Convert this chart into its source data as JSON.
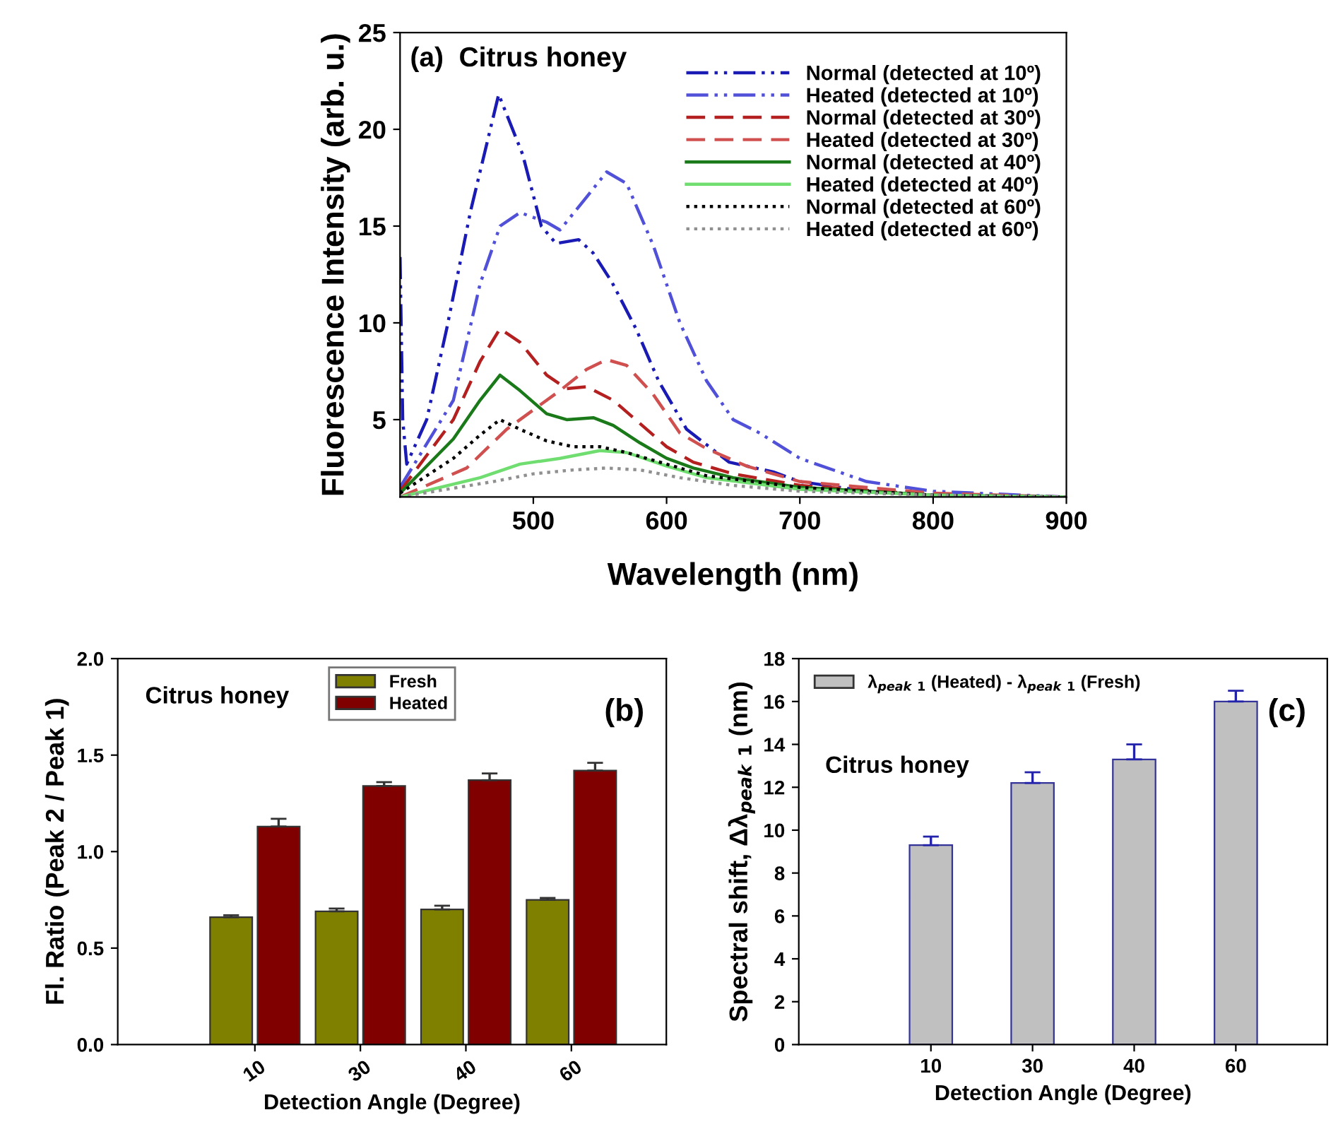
{
  "chart_data": [
    {
      "type": "line",
      "xlabel": "Wavelength (nm)",
      "ylabel": "Fluorescence Intensity (arb. u.)",
      "annotations": [
        "(a)  Citrus honey"
      ],
      "xlim": [
        400,
        900
      ],
      "ylim": [
        1,
        25
      ],
      "xticks": [
        500,
        600,
        700,
        800,
        900
      ],
      "yticks": [
        5,
        10,
        15,
        20,
        25
      ],
      "grid": false,
      "legend": "top right",
      "marker": "none",
      "series": [
        {
          "name": "Normal (detected at 10º)",
          "color": "#1a1ab4",
          "line_style": "dashdot",
          "x": [
            400,
            402,
            405,
            420,
            435,
            453,
            474,
            492,
            506,
            517,
            534,
            545,
            559,
            577,
            594,
            615,
            647,
            680,
            700,
            750,
            800,
            900
          ],
          "values": [
            13.4,
            5,
            2.7,
            5,
            9.7,
            15.8,
            21.8,
            18.7,
            15,
            14.1,
            14.3,
            13.6,
            12.1,
            9.7,
            7,
            4.5,
            2.8,
            2.3,
            1.8,
            1.3,
            1.1,
            1.0
          ]
        },
        {
          "name": "Heated (detected at 10º)",
          "color": "#5050d8",
          "line_style": "dashdot",
          "x": [
            400,
            440,
            460,
            475,
            490,
            510,
            520,
            540,
            555,
            570,
            590,
            610,
            630,
            650,
            670,
            700,
            750,
            800,
            900
          ],
          "values": [
            1.5,
            6,
            12,
            15,
            15.7,
            15.2,
            14.8,
            16.5,
            17.8,
            17.2,
            14,
            10,
            7,
            5,
            4.3,
            3,
            1.8,
            1.3,
            1.0
          ]
        },
        {
          "name": "Normal (detected at 30º)",
          "color": "#b42020",
          "line_style": "dashed",
          "x": [
            400,
            440,
            460,
            475,
            490,
            510,
            525,
            540,
            560,
            580,
            600,
            620,
            650,
            700,
            800,
            900
          ],
          "values": [
            1.3,
            5,
            8,
            9.7,
            9,
            7.3,
            6.6,
            6.7,
            6.0,
            4.8,
            3.6,
            2.8,
            2.2,
            1.6,
            1.1,
            1.0
          ]
        },
        {
          "name": "Heated (detected at 30º)",
          "color": "#d05050",
          "line_style": "dashed",
          "x": [
            400,
            450,
            480,
            500,
            520,
            540,
            555,
            570,
            590,
            610,
            630,
            660,
            700,
            800,
            900
          ],
          "values": [
            1.0,
            2.5,
            4.5,
            5.5,
            6.5,
            7.6,
            8.1,
            7.8,
            6.3,
            4.3,
            3.5,
            2.6,
            1.8,
            1.2,
            1.0
          ]
        },
        {
          "name": "Normal (detected at 40º)",
          "color": "#1a7a1a",
          "line_style": "solid",
          "x": [
            400,
            440,
            460,
            475,
            490,
            510,
            525,
            545,
            560,
            580,
            600,
            620,
            650,
            700,
            800,
            900
          ],
          "values": [
            1.2,
            4,
            6,
            7.3,
            6.5,
            5.3,
            5.0,
            5.1,
            4.7,
            3.8,
            3.0,
            2.5,
            2.0,
            1.5,
            1.1,
            1.0
          ]
        },
        {
          "name": "Heated (detected at 40º)",
          "color": "#70dd70",
          "line_style": "solid",
          "x": [
            400,
            460,
            490,
            520,
            550,
            570,
            600,
            630,
            700,
            800,
            900
          ],
          "values": [
            1.0,
            2.0,
            2.7,
            3.0,
            3.4,
            3.3,
            2.6,
            2.0,
            1.4,
            1.1,
            1.0
          ]
        },
        {
          "name": "Normal (detected at 60º)",
          "color": "#000000",
          "line_style": "dotted",
          "x": [
            400,
            440,
            460,
            475,
            490,
            510,
            530,
            550,
            570,
            600,
            630,
            700,
            800,
            900
          ],
          "values": [
            1.2,
            3,
            4.2,
            5.0,
            4.5,
            3.9,
            3.6,
            3.6,
            3.3,
            2.7,
            2.1,
            1.5,
            1.1,
            1.0
          ]
        },
        {
          "name": "Heated (detected at 60º)",
          "color": "#909090",
          "line_style": "dotted",
          "x": [
            400,
            470,
            500,
            530,
            555,
            580,
            610,
            650,
            700,
            800,
            900
          ],
          "values": [
            1.0,
            1.8,
            2.2,
            2.4,
            2.5,
            2.4,
            2.0,
            1.6,
            1.3,
            1.1,
            1.0
          ]
        }
      ]
    },
    {
      "type": "bar",
      "xlabel": "Detection Angle (Degree)",
      "ylabel": "Fl. Ratio (Peak 2 / Peak 1)",
      "annotations": [
        "Citrus honey",
        "(b)"
      ],
      "categories": [
        "10",
        "30",
        "40",
        "60"
      ],
      "ylim": [
        0,
        2
      ],
      "yticks": [
        {
          "value": 0,
          "label": "0.0"
        },
        {
          "value": 0.5,
          "label": "0.5"
        },
        {
          "value": 1,
          "label": "1.0"
        },
        {
          "value": 1.5,
          "label": "1.5"
        },
        {
          "value": 2,
          "label": "2.0"
        }
      ],
      "grid": false,
      "legend": "top",
      "series": [
        {
          "name": "Fresh",
          "color": "#808000",
          "values": [
            0.66,
            0.69,
            0.7,
            0.75
          ],
          "errors": [
            [
              0.66,
              0.67
            ],
            [
              0.69,
              0.705
            ],
            [
              0.7,
              0.72
            ],
            [
              0.75,
              0.76
            ]
          ]
        },
        {
          "name": "Heated",
          "color": "#800000",
          "values": [
            1.13,
            1.34,
            1.37,
            1.42
          ],
          "errors": [
            [
              1.13,
              1.17
            ],
            [
              1.34,
              1.36
            ],
            [
              1.37,
              1.405
            ],
            [
              1.42,
              1.46
            ]
          ]
        }
      ]
    },
    {
      "type": "bar",
      "xlabel": "Detection Angle (Degree)",
      "ylabel": "Spectral shift, Δλ$_{peak}$ $_{1}$ (nm)",
      "annotations": [
        "Citrus honey",
        "(c)"
      ],
      "categories": [
        "10",
        "30",
        "40",
        "60"
      ],
      "ylim": [
        0,
        18
      ],
      "yticks": [
        0,
        2,
        4,
        6,
        8,
        10,
        12,
        14,
        16,
        18
      ],
      "grid": false,
      "legend": "top left",
      "series": [
        {
          "name": "λ$_{peak}$ $_{1}$ (Heated) - λ$_{peak}$ $_{1}$ (Fresh)",
          "color": "#c0c0c0",
          "values": [
            9.3,
            12.2,
            13.3,
            16.0
          ],
          "errors": [
            [
              9.3,
              9.7
            ],
            [
              12.2,
              12.7
            ],
            [
              13.3,
              14.0
            ],
            [
              16.0,
              16.5
            ]
          ]
        }
      ]
    }
  ]
}
